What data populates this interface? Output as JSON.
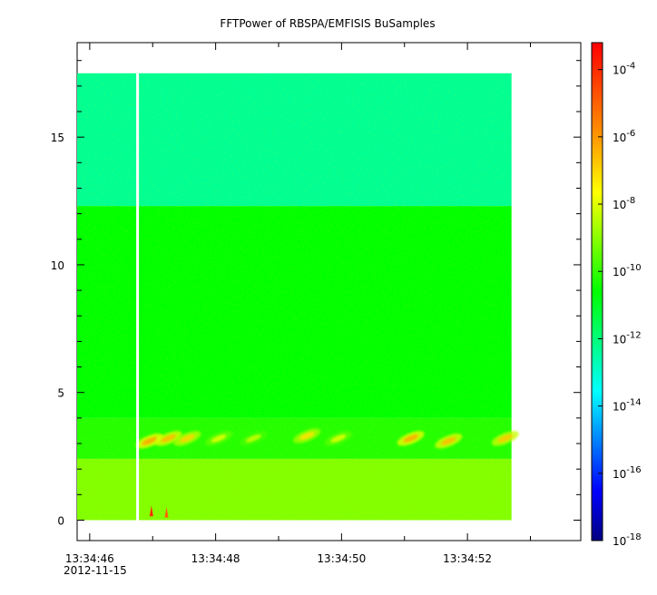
{
  "chart_data": {
    "type": "heatmap",
    "title": "FFTPower of RBSPA/EMFISIS  BuSamples",
    "xlabel": "",
    "ylabel": "",
    "x_ticks": [
      "13:34:46",
      "13:34:48",
      "13:34:50",
      "13:34:52"
    ],
    "x_tick_seconds": [
      46,
      48,
      50,
      52
    ],
    "x_date_label": "2012-11-15",
    "xlim_seconds": [
      45.8,
      53.8
    ],
    "data_x_range_seconds": [
      45.8,
      52.7
    ],
    "y_ticks": [
      0,
      5,
      10,
      15
    ],
    "ylim": [
      -0.8,
      18.7
    ],
    "data_y_range": [
      0,
      17.5
    ],
    "colorbar": {
      "scale": "log",
      "range_exponent": [
        -18,
        -3.2
      ],
      "tick_exponents": [
        -4,
        -6,
        -8,
        -10,
        -12,
        -14,
        -16,
        -18
      ],
      "tick_base": "10",
      "colors": [
        "#000080",
        "#0000ff",
        "#0080ff",
        "#00ffff",
        "#00ff80",
        "#00ff00",
        "#80ff00",
        "#ffff00",
        "#ffa000",
        "#ff5000",
        "#ff0000"
      ]
    },
    "bands": [
      {
        "y0": 12.3,
        "y1": 17.5,
        "level_exponent": -12.3
      },
      {
        "y0": 4.0,
        "y1": 12.3,
        "level_exponent": -10.6
      },
      {
        "y0": 2.4,
        "y1": 4.0,
        "level_exponent": -10.2
      },
      {
        "y0": 0.0,
        "y1": 2.4,
        "level_exponent": -9.1
      }
    ],
    "data_gap_seconds": 46.76,
    "bursts": [
      {
        "t": 46.95,
        "f": 3.1,
        "level_exponent": -6.3
      },
      {
        "t": 47.25,
        "f": 3.2,
        "level_exponent": -6.6
      },
      {
        "t": 47.55,
        "f": 3.2,
        "level_exponent": -7.0
      },
      {
        "t": 48.05,
        "f": 3.2,
        "level_exponent": -8.0
      },
      {
        "t": 48.6,
        "f": 3.2,
        "level_exponent": -8.3
      },
      {
        "t": 49.45,
        "f": 3.3,
        "level_exponent": -7.2
      },
      {
        "t": 49.95,
        "f": 3.2,
        "level_exponent": -8.0
      },
      {
        "t": 51.1,
        "f": 3.2,
        "level_exponent": -6.4
      },
      {
        "t": 51.7,
        "f": 3.1,
        "level_exponent": -6.6
      },
      {
        "t": 52.6,
        "f": 3.2,
        "level_exponent": -6.8
      }
    ],
    "spikes": [
      {
        "t": 46.98,
        "f": 0.15,
        "level_exponent": -4.0
      },
      {
        "t": 47.22,
        "f": 0.1,
        "level_exponent": -5.0
      }
    ]
  }
}
